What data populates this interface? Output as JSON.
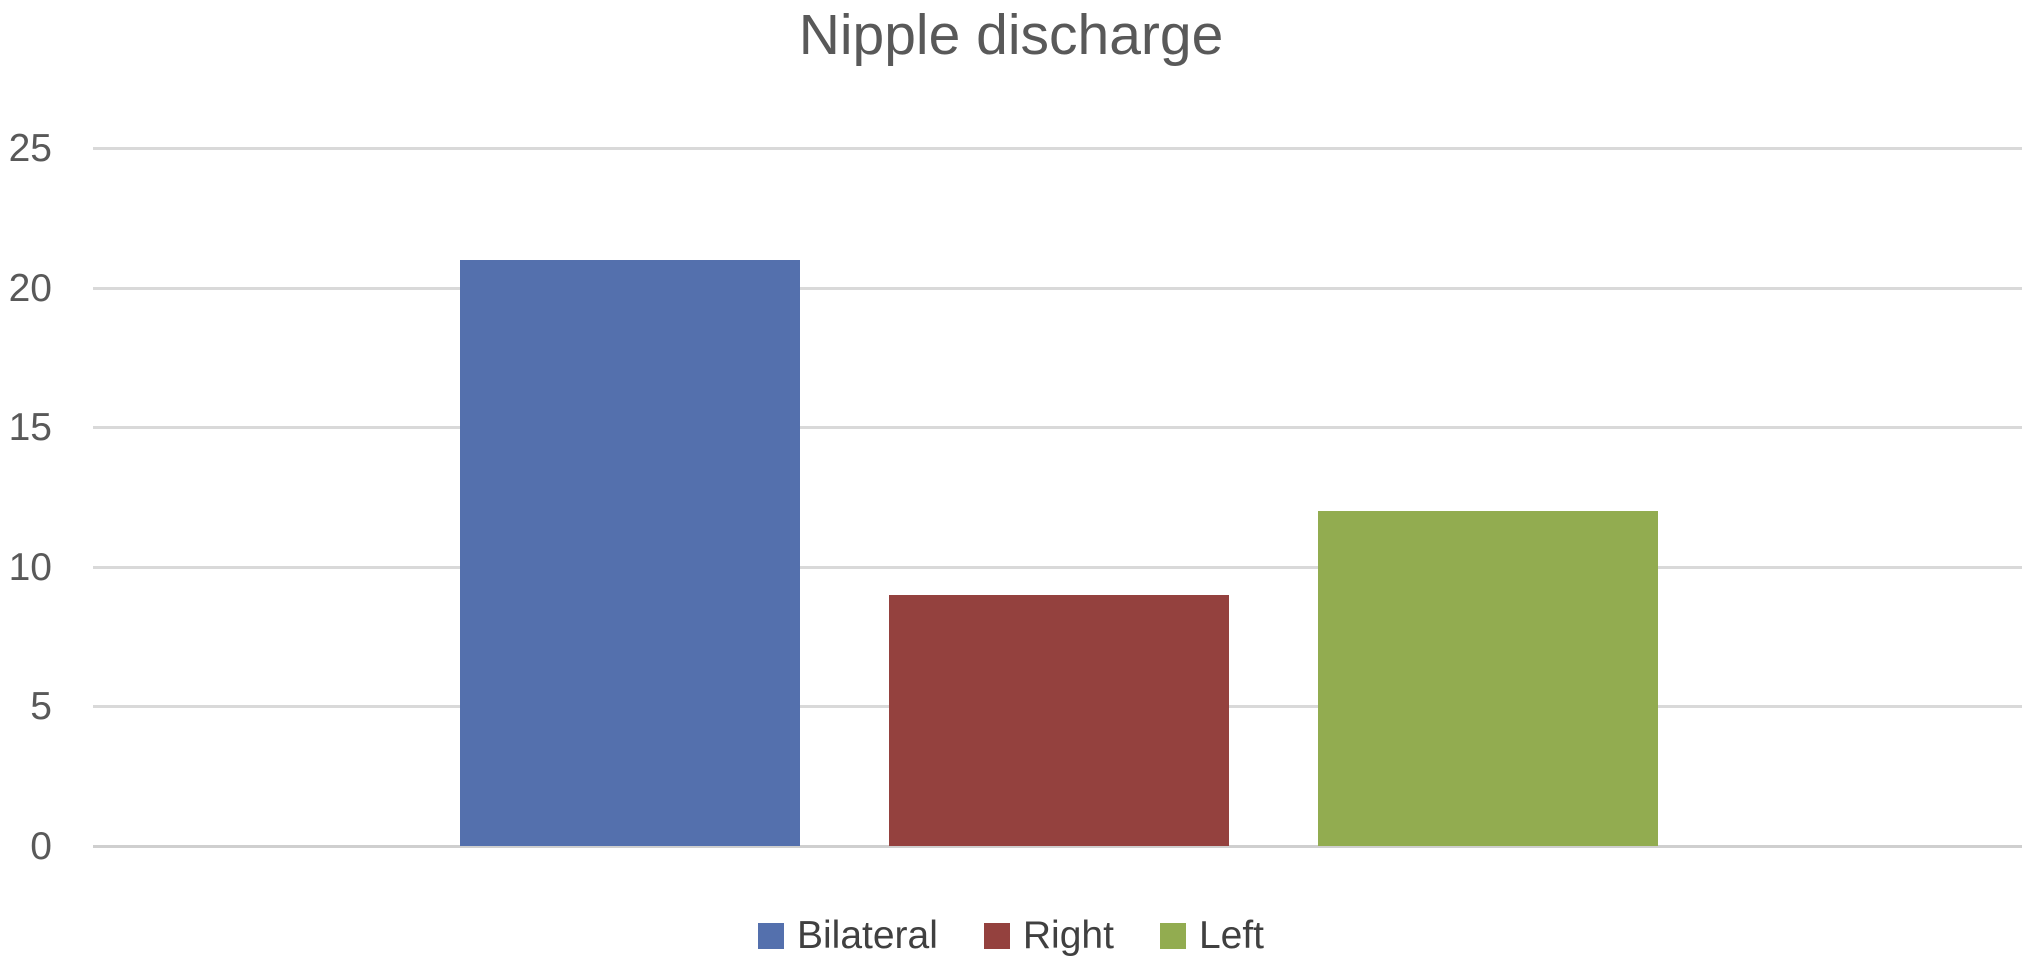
{
  "chart_data": {
    "type": "bar",
    "title": "Nipple discharge",
    "categories": [
      ""
    ],
    "series": [
      {
        "name": "Bilateral",
        "values": [
          21
        ],
        "color": "#5470AD"
      },
      {
        "name": "Right",
        "values": [
          9
        ],
        "color": "#94413E"
      },
      {
        "name": "Left",
        "values": [
          12
        ],
        "color": "#92AC50"
      }
    ],
    "xlabel": "",
    "ylabel": "",
    "ylim": [
      0,
      25
    ],
    "yticks": [
      0,
      5,
      10,
      15,
      20,
      25
    ],
    "grid": true,
    "legend_position": "bottom"
  },
  "colors": {
    "title_text": "#595959",
    "tick_text": "#595959",
    "legend_text": "#404040",
    "gridline": "#D9D9D9",
    "zero_line": "#CFCFCF",
    "background": "#FFFFFF"
  }
}
